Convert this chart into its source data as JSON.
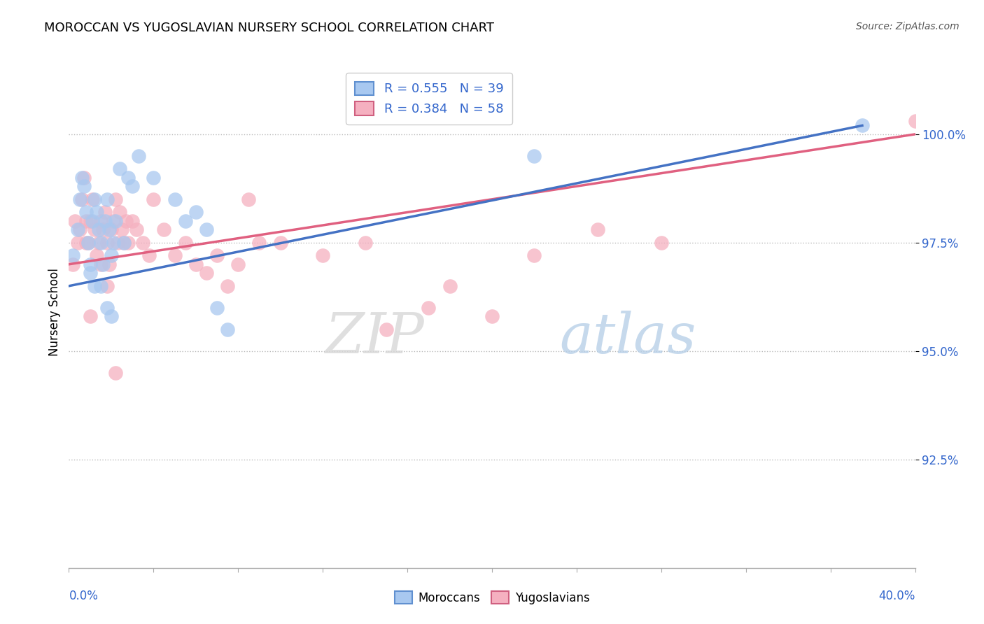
{
  "title": "MOROCCAN VS YUGOSLAVIAN NURSERY SCHOOL CORRELATION CHART",
  "source": "Source: ZipAtlas.com",
  "ylabel": "Nursery School",
  "ytick_labels": [
    "92.5%",
    "95.0%",
    "97.5%",
    "100.0%"
  ],
  "ytick_values": [
    92.5,
    95.0,
    97.5,
    100.0
  ],
  "xlim": [
    0.0,
    40.0
  ],
  "ylim": [
    90.0,
    101.8
  ],
  "legend_label1": "Moroccans",
  "legend_label2": "Yugoslavians",
  "R_moroccan": 0.555,
  "N_moroccan": 39,
  "R_yugoslav": 0.384,
  "N_yugoslav": 58,
  "color_moroccan": "#a8c8f0",
  "color_yugoslav": "#f5b0c0",
  "color_moroccan_line": "#4472c4",
  "color_yugoslav_line": "#e06080",
  "color_axis_labels": "#3366cc",
  "watermark_zip": "ZIP",
  "watermark_atlas": "atlas",
  "moroccan_x": [
    0.2,
    0.4,
    0.5,
    0.6,
    0.7,
    0.8,
    0.9,
    1.0,
    1.1,
    1.2,
    1.3,
    1.4,
    1.5,
    1.6,
    1.7,
    1.8,
    1.9,
    2.0,
    2.1,
    2.2,
    2.4,
    2.6,
    2.8,
    3.0,
    3.3,
    4.0,
    5.0,
    5.5,
    6.0,
    6.5,
    7.0,
    7.5,
    1.5,
    1.8,
    2.0,
    1.2,
    1.0,
    22.0,
    37.5
  ],
  "moroccan_y": [
    97.2,
    97.8,
    98.5,
    99.0,
    98.8,
    98.2,
    97.5,
    97.0,
    98.0,
    98.5,
    98.2,
    97.8,
    97.5,
    97.0,
    98.0,
    98.5,
    97.8,
    97.2,
    97.5,
    98.0,
    99.2,
    97.5,
    99.0,
    98.8,
    99.5,
    99.0,
    98.5,
    98.0,
    98.2,
    97.8,
    96.0,
    95.5,
    96.5,
    96.0,
    95.8,
    96.5,
    96.8,
    99.5,
    100.2
  ],
  "yugoslav_x": [
    0.2,
    0.3,
    0.4,
    0.5,
    0.6,
    0.7,
    0.8,
    0.9,
    1.0,
    1.1,
    1.2,
    1.3,
    1.4,
    1.5,
    1.6,
    1.7,
    1.8,
    1.9,
    2.0,
    2.1,
    2.2,
    2.3,
    2.4,
    2.5,
    2.6,
    2.7,
    2.8,
    3.0,
    3.2,
    3.5,
    3.8,
    4.0,
    4.5,
    5.0,
    5.5,
    6.0,
    6.5,
    7.0,
    7.5,
    8.0,
    9.0,
    10.0,
    12.0,
    14.0,
    15.0,
    17.0,
    18.0,
    20.0,
    22.0,
    25.0,
    28.0,
    8.5,
    1.5,
    1.8,
    2.2,
    1.0,
    0.8,
    40.0
  ],
  "yugoslav_y": [
    97.0,
    98.0,
    97.5,
    97.8,
    98.5,
    99.0,
    98.0,
    97.5,
    98.0,
    98.5,
    97.8,
    97.2,
    97.5,
    98.0,
    97.8,
    98.2,
    97.5,
    97.0,
    97.8,
    98.0,
    98.5,
    97.5,
    98.2,
    97.8,
    97.5,
    98.0,
    97.5,
    98.0,
    97.8,
    97.5,
    97.2,
    98.5,
    97.8,
    97.2,
    97.5,
    97.0,
    96.8,
    97.2,
    96.5,
    97.0,
    97.5,
    97.5,
    97.2,
    97.5,
    95.5,
    96.0,
    96.5,
    95.8,
    97.2,
    97.8,
    97.5,
    98.5,
    97.0,
    96.5,
    94.5,
    95.8,
    97.5,
    100.3
  ]
}
